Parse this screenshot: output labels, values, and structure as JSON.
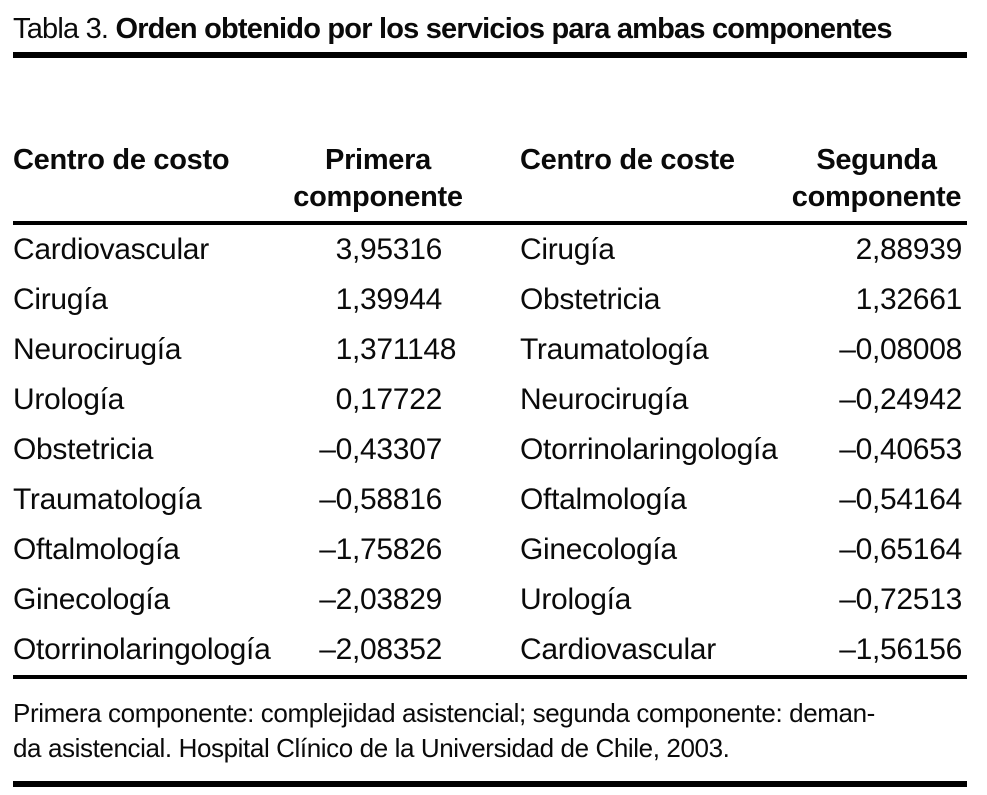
{
  "caption": {
    "prefix": "Tabla 3. ",
    "text": "Orden obtenido por los servicios para ambas componentes"
  },
  "table": {
    "headers": [
      {
        "label": "Centro de costo"
      },
      {
        "label": "Primera\ncomponente"
      },
      {
        "label": "Centro de coste"
      },
      {
        "label": "Segunda\ncomponente"
      }
    ],
    "rows": [
      [
        "Cardiovascular",
        "3,95316",
        "Cirugía",
        "2,88939"
      ],
      [
        "Cirugía",
        "1,39944",
        "Obstetricia",
        "1,32661"
      ],
      [
        "Neurocirugía",
        "1,371148",
        "Traumatología",
        "–0,08008"
      ],
      [
        "Urología",
        "0,17722",
        "Neurocirugía",
        "–0,24942"
      ],
      [
        "Obstetricia",
        "–0,43307",
        "Otorrinolaringología",
        "–0,40653"
      ],
      [
        "Traumatología",
        "–0,58816",
        "Oftalmología",
        "–0,54164"
      ],
      [
        "Oftalmología",
        "–1,75826",
        "Ginecología",
        "–0,65164"
      ],
      [
        "Ginecología",
        "–2,03829",
        "Urología",
        "–0,72513"
      ],
      [
        "Otorrinolaringología",
        "–2,08352",
        "Cardiovascular",
        "–1,56156"
      ]
    ]
  },
  "footnote": {
    "lines": [
      "Primera componente: complejidad asistencial; segunda componente: deman-",
      "da asistencial. Hospital Clínico de la Universidad de Chile, 2003."
    ]
  },
  "colors": {
    "background": "#ffffff",
    "text": "#0a0a0a",
    "rule": "#000000"
  }
}
